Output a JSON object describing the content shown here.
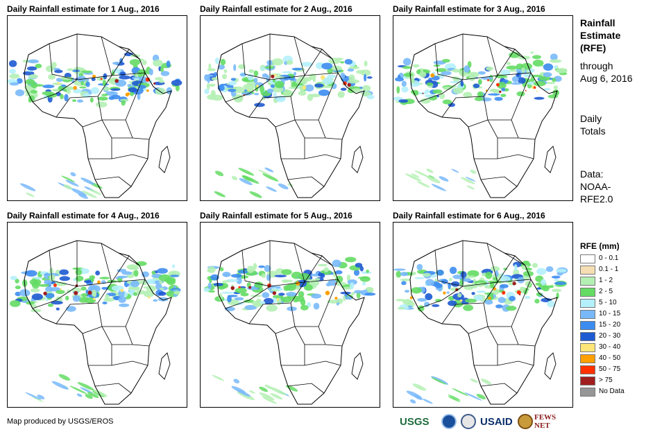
{
  "panels": [
    {
      "title": "Daily Rainfall estimate for 1 Aug., 2016"
    },
    {
      "title": "Daily Rainfall estimate for 2 Aug., 2016"
    },
    {
      "title": "Daily Rainfall estimate for 3 Aug., 2016"
    },
    {
      "title": "Daily Rainfall estimate for 4 Aug., 2016"
    },
    {
      "title": "Daily Rainfall estimate for 5 Aug., 2016"
    },
    {
      "title": "Daily Rainfall estimate for 6 Aug., 2016"
    }
  ],
  "side": {
    "title_l1": "Rainfall",
    "title_l2": "Estimate",
    "title_l3": "(RFE)",
    "through_l1": "through",
    "through_l2": "Aug 6, 2016",
    "daily_l1": "Daily",
    "daily_l2": "Totals",
    "data_l1": "Data:",
    "data_l2": "NOAA-",
    "data_l3": "RFE2.0"
  },
  "legend": {
    "title": "RFE (mm)",
    "items": [
      {
        "label": "0 - 0.1",
        "color": "#ffffff"
      },
      {
        "label": "0.1 - 1",
        "color": "#f5deb3"
      },
      {
        "label": "1 - 2",
        "color": "#b4f0b4"
      },
      {
        "label": "2 - 5",
        "color": "#64dc64"
      },
      {
        "label": "5 - 10",
        "color": "#b4f0fa"
      },
      {
        "label": "10 - 15",
        "color": "#78b9fa"
      },
      {
        "label": "15 - 20",
        "color": "#3c8cf0"
      },
      {
        "label": "20 - 30",
        "color": "#1e5ad2"
      },
      {
        "label": "30 - 40",
        "color": "#ffe678"
      },
      {
        "label": "40 - 50",
        "color": "#ffa000"
      },
      {
        "label": "50 - 75",
        "color": "#ff3200"
      },
      {
        "label": "> 75",
        "color": "#a01e1e"
      },
      {
        "label": "No Data",
        "color": "#969696"
      }
    ]
  },
  "credit": "Map produced by USGS/EROS",
  "logos": {
    "usgs": "USGS",
    "usaid": "USAID",
    "fews": "FEWS NET"
  }
}
